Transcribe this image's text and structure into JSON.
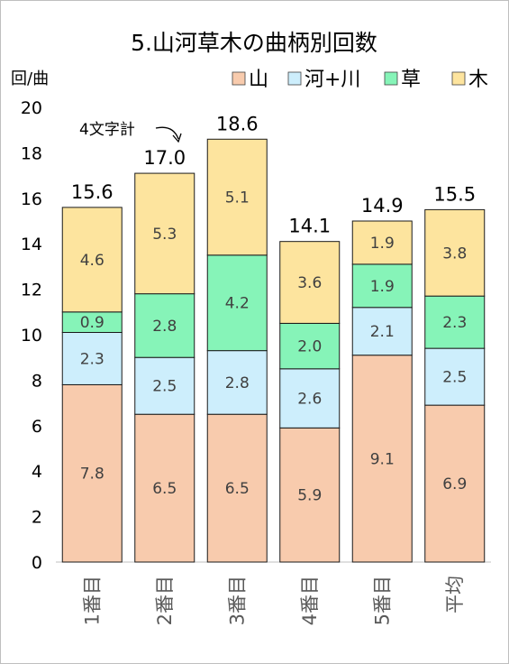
{
  "chart_data": {
    "type": "bar",
    "stacked": true,
    "title": "5.山河草木の曲柄別回数",
    "ylabel": "回/曲",
    "ylim": [
      0,
      20
    ],
    "yticks": [
      0,
      2,
      4,
      6,
      8,
      10,
      12,
      14,
      16,
      18,
      20
    ],
    "categories": [
      "1番目",
      "2番目",
      "3番目",
      "4番目",
      "5番目",
      "平均"
    ],
    "series": [
      {
        "name": "山",
        "color": "#f8cbad",
        "values": [
          7.8,
          6.5,
          6.5,
          5.9,
          9.1,
          6.9
        ]
      },
      {
        "name": "河+川",
        "color": "#cdeefc",
        "values": [
          2.3,
          2.5,
          2.8,
          2.6,
          2.1,
          2.5
        ]
      },
      {
        "name": "草",
        "color": "#86f4b8",
        "values": [
          0.9,
          2.8,
          4.2,
          2.0,
          1.9,
          2.3
        ]
      },
      {
        "name": "木",
        "color": "#fde49e",
        "values": [
          4.6,
          5.3,
          5.1,
          3.6,
          1.9,
          3.8
        ]
      }
    ],
    "totals": [
      15.6,
      17.0,
      18.6,
      14.1,
      14.9,
      15.5
    ],
    "annotation": "4文字計",
    "legend_position": "top-right",
    "grid": false
  }
}
